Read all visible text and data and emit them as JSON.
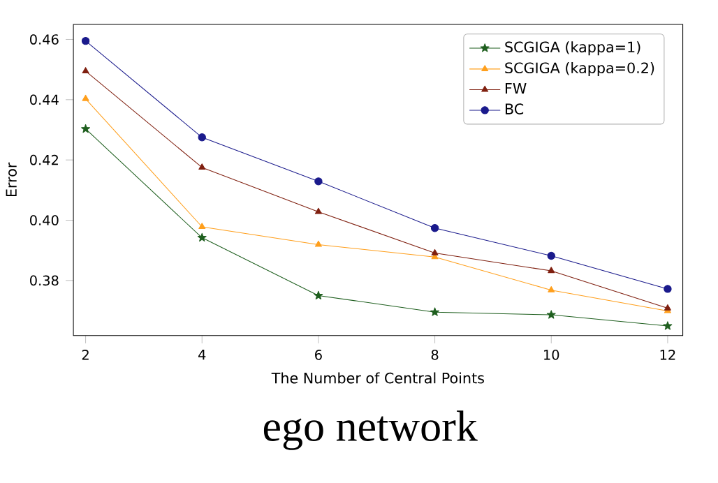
{
  "chart_data": {
    "type": "line",
    "xlabel": "The Number of Central Points",
    "ylabel": "Error",
    "annotations": [
      "ego network"
    ],
    "x": [
      2,
      4,
      6,
      8,
      10,
      12
    ],
    "xlim": [
      1.79,
      12.26
    ],
    "ylim": [
      0.3617,
      0.465
    ],
    "xticks": [
      2,
      4,
      6,
      8,
      10,
      12
    ],
    "yticks": [
      {
        "value": 0.38,
        "label": "0.38"
      },
      {
        "value": 0.4,
        "label": "0.40"
      },
      {
        "value": 0.42,
        "label": "0.42"
      },
      {
        "value": 0.44,
        "label": "0.44"
      },
      {
        "value": 0.46,
        "label": "0.46"
      }
    ],
    "legend": "top right",
    "grid": false,
    "line_style": "solid",
    "series": [
      {
        "name": "SCGIGA (kappa=1)",
        "color": "#1f5f1f",
        "marker": "star",
        "values": [
          0.4303,
          0.3942,
          0.375,
          0.3695,
          0.3686,
          0.3649
        ]
      },
      {
        "name": "SCGIGA (kappa=0.2)",
        "color": "#ff9f1c",
        "marker": "triangle",
        "values": [
          0.4403,
          0.3978,
          0.3919,
          0.3878,
          0.3768,
          0.3699
        ]
      },
      {
        "name": "FW",
        "color": "#7f1f0f",
        "marker": "triangle",
        "values": [
          0.4495,
          0.4175,
          0.4028,
          0.3891,
          0.3832,
          0.3708
        ]
      },
      {
        "name": "BC",
        "color": "#1a1a8c",
        "marker": "circle",
        "values": [
          0.4595,
          0.4275,
          0.4129,
          0.3974,
          0.3882,
          0.3772
        ]
      }
    ]
  }
}
